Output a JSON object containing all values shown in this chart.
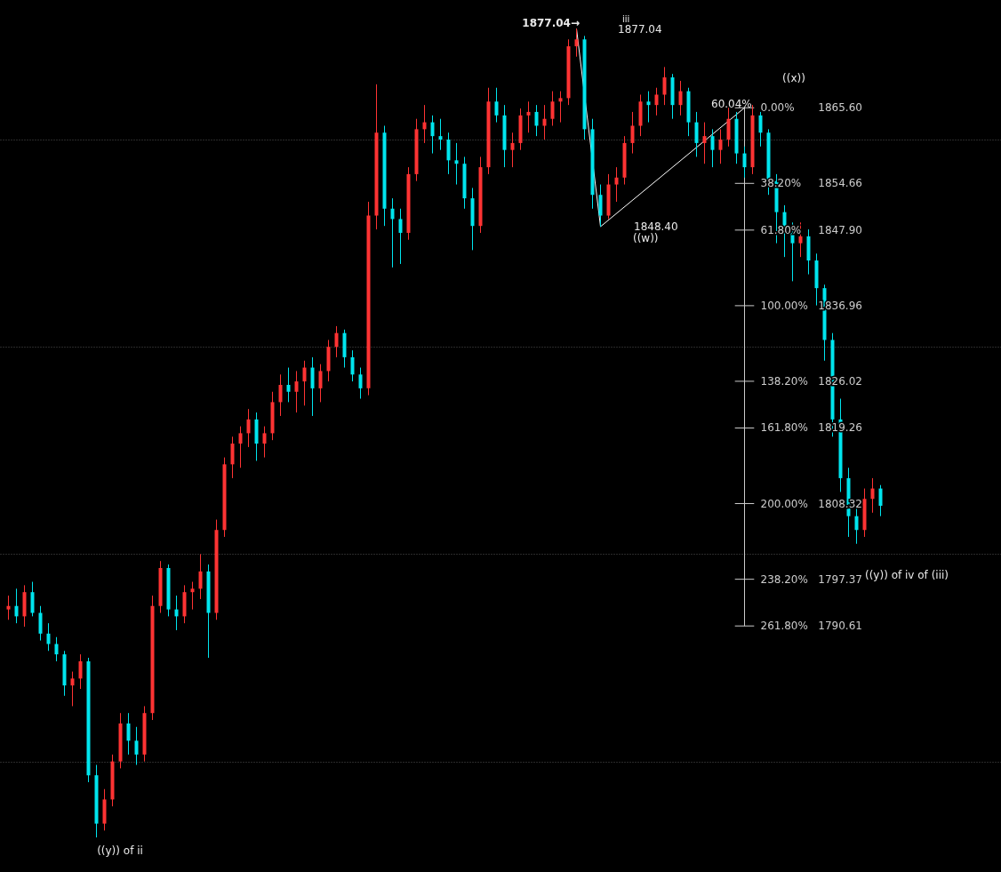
{
  "chart_data": {
    "type": "candlestick",
    "categories": [
      null,
      null,
      null,
      null,
      null,
      null,
      null,
      null,
      null,
      null,
      null,
      null,
      null,
      null,
      null,
      null,
      null,
      null,
      null,
      null,
      null,
      null,
      null,
      null,
      null,
      null,
      null,
      null,
      null,
      null,
      null,
      null,
      null,
      null,
      null,
      null,
      null,
      null,
      null,
      null,
      null,
      null,
      null,
      null,
      null,
      null,
      null,
      null,
      null,
      null,
      null,
      null,
      null,
      null,
      null,
      null,
      null,
      null,
      null,
      null,
      null,
      null,
      null,
      null,
      null,
      null,
      null,
      null,
      null,
      null,
      null,
      null,
      null,
      null,
      null,
      null,
      null,
      null,
      null,
      null,
      null,
      null,
      null,
      null,
      null,
      null,
      null,
      null,
      null,
      null,
      null,
      null,
      null,
      null,
      null,
      null,
      null,
      null,
      null,
      null,
      null,
      null,
      null,
      null,
      null,
      null,
      null,
      null,
      null,
      null
    ],
    "ohlc": [
      [
        1793,
        1795,
        1791.5,
        1793.5
      ],
      [
        1793.5,
        1796,
        1791,
        1792
      ],
      [
        1792,
        1796.5,
        1790.5,
        1795.5
      ],
      [
        1795.5,
        1797,
        1792,
        1792.5
      ],
      [
        1792.5,
        1793.5,
        1788.5,
        1789.5
      ],
      [
        1789.5,
        1791,
        1787,
        1788
      ],
      [
        1788,
        1789,
        1785.5,
        1786.5
      ],
      [
        1786.5,
        1787,
        1780.5,
        1782
      ],
      [
        1782,
        1784,
        1779,
        1783
      ],
      [
        1783,
        1786.5,
        1781.5,
        1785.5
      ],
      [
        1785.5,
        1786,
        1768,
        1769
      ],
      [
        1769,
        1770.5,
        1760,
        1762
      ],
      [
        1762,
        1767,
        1761,
        1765.5
      ],
      [
        1765.5,
        1772,
        1764.5,
        1771
      ],
      [
        1771,
        1778,
        1770,
        1776.5
      ],
      [
        1776.5,
        1778,
        1772,
        1774
      ],
      [
        1774,
        1776,
        1770.5,
        1772
      ],
      [
        1772,
        1779,
        1771,
        1778
      ],
      [
        1778,
        1795,
        1777,
        1793.5
      ],
      [
        1793.5,
        1800,
        1792.5,
        1799
      ],
      [
        1799,
        1799.5,
        1792,
        1793
      ],
      [
        1793,
        1795,
        1790,
        1792
      ],
      [
        1792,
        1796.5,
        1791,
        1795.5
      ],
      [
        1795.5,
        1797,
        1793,
        1796
      ],
      [
        1796,
        1801,
        1794.5,
        1798.5
      ],
      [
        1798.5,
        1799.5,
        1786,
        1792.5
      ],
      [
        1792.5,
        1806,
        1791.5,
        1804.5
      ],
      [
        1804.5,
        1815,
        1803.5,
        1814
      ],
      [
        1814,
        1818,
        1812,
        1817
      ],
      [
        1817,
        1819.5,
        1813.5,
        1818.5
      ],
      [
        1818.5,
        1822,
        1816.5,
        1820.5
      ],
      [
        1820.5,
        1821.5,
        1814.5,
        1817
      ],
      [
        1817,
        1819.5,
        1815,
        1818.5
      ],
      [
        1818.5,
        1824.5,
        1817.5,
        1823
      ],
      [
        1823,
        1827,
        1821,
        1825.5
      ],
      [
        1825.5,
        1828,
        1823,
        1824.5
      ],
      [
        1824.5,
        1827.5,
        1821.5,
        1826
      ],
      [
        1826,
        1829,
        1822.5,
        1828
      ],
      [
        1828,
        1829.5,
        1821,
        1825
      ],
      [
        1825,
        1828.5,
        1823,
        1827.5
      ],
      [
        1827.5,
        1832,
        1826,
        1831
      ],
      [
        1831,
        1834,
        1829.5,
        1833
      ],
      [
        1833,
        1833.5,
        1828,
        1829.5
      ],
      [
        1829.5,
        1830.5,
        1826,
        1827
      ],
      [
        1827,
        1828,
        1823.5,
        1825
      ],
      [
        1825,
        1852,
        1824,
        1850
      ],
      [
        1850,
        1869,
        1848,
        1862
      ],
      [
        1862,
        1863,
        1848.5,
        1851
      ],
      [
        1851,
        1852.5,
        1842.5,
        1849.5
      ],
      [
        1849.5,
        1851,
        1843,
        1847.5
      ],
      [
        1847.5,
        1857,
        1846.5,
        1856
      ],
      [
        1856,
        1864,
        1855,
        1862.5
      ],
      [
        1862.5,
        1866,
        1860.5,
        1863.5
      ],
      [
        1863.5,
        1864.5,
        1859,
        1861.5
      ],
      [
        1861.5,
        1864,
        1859.5,
        1861
      ],
      [
        1861,
        1862,
        1856,
        1858
      ],
      [
        1858,
        1860.5,
        1854.5,
        1857.5
      ],
      [
        1857.5,
        1858.5,
        1851,
        1852.5
      ],
      [
        1852.5,
        1854,
        1845,
        1848.5
      ],
      [
        1848.5,
        1858.5,
        1847.5,
        1857
      ],
      [
        1857,
        1868.5,
        1856,
        1866.5
      ],
      [
        1866.5,
        1868.5,
        1863.5,
        1864.5
      ],
      [
        1864.5,
        1866,
        1857,
        1859.5
      ],
      [
        1859.5,
        1862,
        1857,
        1860.5
      ],
      [
        1860.5,
        1865.5,
        1859.5,
        1864.5
      ],
      [
        1864.5,
        1866.5,
        1862,
        1865
      ],
      [
        1865,
        1866,
        1861.5,
        1863
      ],
      [
        1863,
        1866,
        1861,
        1864
      ],
      [
        1864,
        1868,
        1863,
        1866.5
      ],
      [
        1866.5,
        1868,
        1863.5,
        1867
      ],
      [
        1867,
        1875.5,
        1866,
        1874.5
      ],
      [
        1874.5,
        1877.04,
        1873,
        1875.5
      ],
      [
        1875.5,
        1876,
        1861,
        1862.5
      ],
      [
        1862.5,
        1864,
        1851,
        1853
      ],
      [
        1853,
        1854.5,
        1848.4,
        1850
      ],
      [
        1850,
        1856,
        1849.5,
        1854.5
      ],
      [
        1854.5,
        1857,
        1852,
        1855.5
      ],
      [
        1855.5,
        1861.5,
        1854.5,
        1860.5
      ],
      [
        1860.5,
        1865,
        1859,
        1863
      ],
      [
        1863,
        1867.5,
        1861.5,
        1866.5
      ],
      [
        1866.5,
        1868,
        1863.5,
        1866
      ],
      [
        1866,
        1868.5,
        1864.5,
        1867.5
      ],
      [
        1867.5,
        1871.5,
        1866,
        1870
      ],
      [
        1870,
        1870.5,
        1864,
        1866
      ],
      [
        1866,
        1869.5,
        1864.5,
        1868
      ],
      [
        1868,
        1868.5,
        1861.5,
        1863.5
      ],
      [
        1863.5,
        1865,
        1858.5,
        1860.5
      ],
      [
        1860.5,
        1863.5,
        1857.5,
        1861.5
      ],
      [
        1861.5,
        1862.5,
        1857,
        1859.5
      ],
      [
        1859.5,
        1862.5,
        1857.5,
        1861
      ],
      [
        1861,
        1865.6,
        1860,
        1864
      ],
      [
        1864,
        1865,
        1857.5,
        1859
      ],
      [
        1859,
        1860,
        1855.5,
        1857
      ],
      [
        1857,
        1866,
        1856,
        1864.5
      ],
      [
        1864.5,
        1865,
        1860,
        1862
      ],
      [
        1862,
        1862.5,
        1853,
        1855
      ],
      [
        1855,
        1856,
        1846,
        1850.5
      ],
      [
        1850.5,
        1851.5,
        1844,
        1847.5
      ],
      [
        1847.5,
        1849,
        1840.5,
        1846
      ],
      [
        1846,
        1849,
        1844,
        1847
      ],
      [
        1847,
        1848,
        1841.5,
        1843.5
      ],
      [
        1843.5,
        1844.5,
        1837,
        1839.5
      ],
      [
        1839.5,
        1840,
        1829,
        1832
      ],
      [
        1832,
        1833,
        1818,
        1820.5
      ],
      [
        1820.5,
        1823.5,
        1810,
        1812
      ],
      [
        1812,
        1813.5,
        1803.5,
        1806.5
      ],
      [
        1806.5,
        1808,
        1802.5,
        1804.5
      ],
      [
        1804.5,
        1810.5,
        1803.5,
        1809
      ],
      [
        1809,
        1812,
        1807,
        1810.5
      ],
      [
        1810.5,
        1811,
        1806.5,
        1808
      ]
    ],
    "colors": [
      "#ff3333",
      "#00e5ee",
      "#ff3333",
      "#00e5ee",
      "#00e5ee",
      "#00e5ee",
      "#00e5ee",
      "#00e5ee",
      "#ff3333",
      "#ff3333",
      "#00e5ee",
      "#00e5ee",
      "#ff3333",
      "#ff3333",
      "#ff3333",
      "#00e5ee",
      "#00e5ee",
      "#ff3333",
      "#ff3333",
      "#ff3333",
      "#00e5ee",
      "#00e5ee",
      "#ff3333",
      "#ff3333",
      "#ff3333",
      "#00e5ee",
      "#ff3333",
      "#ff3333",
      "#ff3333",
      "#ff3333",
      "#ff3333",
      "#00e5ee",
      "#ff3333",
      "#ff3333",
      "#ff3333",
      "#00e5ee",
      "#ff3333",
      "#ff3333",
      "#00e5ee",
      "#ff3333",
      "#ff3333",
      "#ff3333",
      "#00e5ee",
      "#00e5ee",
      "#00e5ee",
      "#ff3333",
      "#ff3333",
      "#00e5ee",
      "#00e5ee",
      "#00e5ee",
      "#ff3333",
      "#ff3333",
      "#ff3333",
      "#00e5ee",
      "#00e5ee",
      "#00e5ee",
      "#00e5ee",
      "#00e5ee",
      "#00e5ee",
      "#ff3333",
      "#ff3333",
      "#00e5ee",
      "#00e5ee",
      "#ff3333",
      "#ff3333",
      "#ff3333",
      "#00e5ee",
      "#ff3333",
      "#ff3333",
      "#ff3333",
      "#ff3333",
      "#ff3333",
      "#00e5ee",
      "#00e5ee",
      "#00e5ee",
      "#ff3333",
      "#ff3333",
      "#ff3333",
      "#ff3333",
      "#ff3333",
      "#00e5ee",
      "#ff3333",
      "#ff3333",
      "#00e5ee",
      "#ff3333",
      "#00e5ee",
      "#00e5ee",
      "#ff3333",
      "#00e5ee",
      "#ff3333",
      "#ff3333",
      "#00e5ee",
      "#00e5ee",
      "#ff3333",
      "#00e5ee",
      "#00e5ee",
      "#00e5ee",
      "#00e5ee",
      "#00e5ee",
      "#ff3333",
      "#00e5ee",
      "#00e5ee",
      "#00e5ee",
      "#00e5ee",
      "#00e5ee",
      "#00e5ee",
      "#00e5ee",
      "#ff3333",
      "#ff3333",
      "#00e5ee"
    ],
    "ylim": [
      1755,
      1881.2
    ],
    "yticks": [
      {
        "value": 1771,
        "label": null
      },
      {
        "value": 1801,
        "label": null
      },
      {
        "value": 1831,
        "label": null
      },
      {
        "value": 1861,
        "label": null
      }
    ],
    "grid": "y",
    "ref_lines": [
      {
        "axis": "y",
        "value": 1865.6,
        "label": "0.00%       1865.60",
        "color": "#cccccc"
      },
      {
        "axis": "y",
        "value": 1854.66,
        "label": "38.20%     1854.66",
        "color": "#cccccc"
      },
      {
        "axis": "y",
        "value": 1847.9,
        "label": "61.80%     1847.90",
        "color": "#cccccc"
      },
      {
        "axis": "y",
        "value": 1836.96,
        "label": "100.00%   1836.96",
        "color": "#cccccc"
      },
      {
        "axis": "y",
        "value": 1826.02,
        "label": "138.20%   1826.02",
        "color": "#cccccc"
      },
      {
        "axis": "y",
        "value": 1819.26,
        "label": "161.80%   1819.26",
        "color": "#cccccc"
      },
      {
        "axis": "y",
        "value": 1808.32,
        "label": "200.00%   1808.32",
        "color": "#cccccc"
      },
      {
        "axis": "y",
        "value": 1797.37,
        "label": "238.20%   1797.37",
        "color": "#cccccc"
      },
      {
        "axis": "y",
        "value": 1790.61,
        "label": "261.80%   1790.61",
        "color": "#cccccc"
      }
    ],
    "annotations": [
      "1877.04→",
      "iii",
      "1877.04",
      "1848.40",
      "((w))",
      "60.04%",
      "((x))",
      "((y)) of ii",
      "((y)) of iv of (iii)"
    ]
  }
}
